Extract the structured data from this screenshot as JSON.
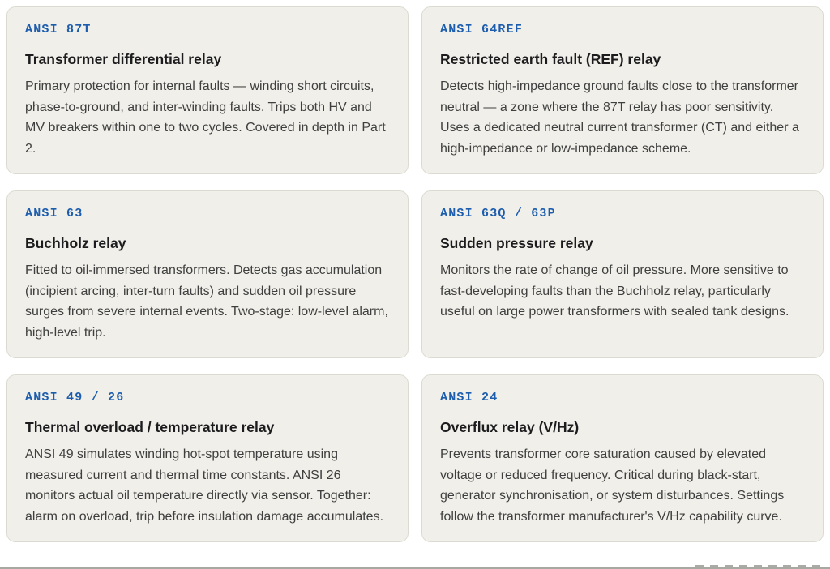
{
  "theme": {
    "page_background": "#ffffff",
    "card_background": "#f0efe9",
    "card_border": "#dcdbd2",
    "ansi_code_color": "#1d5dae",
    "title_color": "#1c1c1e",
    "body_color": "#3f3f3f",
    "bottom_strip_color": "#a8a8a3"
  },
  "cards": [
    {
      "code": "ANSI 87T",
      "title": "Transformer differential relay",
      "description": "Primary protection for internal faults — winding short circuits, phase-to-ground, and inter-winding faults. Trips both HV and MV breakers within one to two cycles. Covered in depth in Part 2."
    },
    {
      "code": "ANSI 64REF",
      "title": "Restricted earth fault (REF) relay",
      "description": "Detects high-impedance ground faults close to the transformer neutral — a zone where the 87T relay has poor sensitivity. Uses a dedicated neutral current transformer (CT) and either a high-impedance or low-impedance scheme."
    },
    {
      "code": "ANSI 63",
      "title": "Buchholz relay",
      "description": "Fitted to oil-immersed transformers. Detects gas accumulation (incipient arcing, inter-turn faults) and sudden oil pressure surges from severe internal events. Two-stage: low-level alarm, high-level trip."
    },
    {
      "code": "ANSI 63Q / 63P",
      "title": "Sudden pressure relay",
      "description": "Monitors the rate of change of oil pressure. More sensitive to fast-developing faults than the Buchholz relay, particularly useful on large power transformers with sealed tank designs."
    },
    {
      "code": "ANSI 49 / 26",
      "title": "Thermal overload / temperature relay",
      "description": "ANSI 49 simulates winding hot-spot temperature using measured current and thermal time constants. ANSI 26 monitors actual oil temperature directly via sensor. Together: alarm on overload, trip before insulation damage accumulates."
    },
    {
      "code": "ANSI 24",
      "title": "Overflux relay (V/Hz)",
      "description": "Prevents transformer core saturation caused by elevated voltage or reduced frequency. Critical during black-start, generator synchronisation, or system disturbances. Settings follow the transformer manufacturer's V/Hz capability curve."
    }
  ]
}
